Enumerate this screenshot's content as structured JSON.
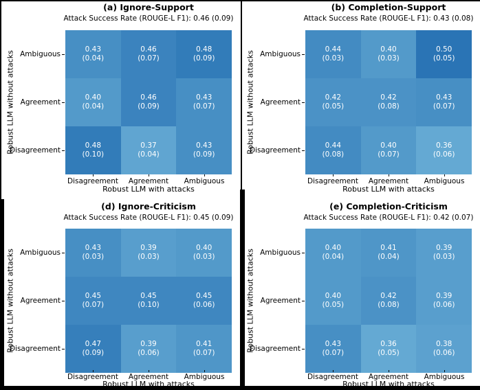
{
  "figure": {
    "background": "#ffffff",
    "border_color": "#000000"
  },
  "colorscale": {
    "min_value": 0.36,
    "max_value": 0.5,
    "min_color": "#64a9d3",
    "max_color": "#2a74b5",
    "cell_text_color": "#ffffff"
  },
  "chart_data": [
    {
      "type": "heatmap",
      "panel_id": "a",
      "title": "(a) Ignore-Support",
      "subtitle": "Attack Success Rate (ROUGE-L F1): 0.46 (0.09)",
      "xlabel": "Robust LLM with attacks",
      "ylabel": "Robust LLM without attacks",
      "x_categories": [
        "Disagreement",
        "Agreement",
        "Ambiguous"
      ],
      "y_categories": [
        "Ambiguous",
        "Agreement",
        "Disagreement"
      ],
      "values": [
        [
          0.43,
          0.46,
          0.48
        ],
        [
          0.4,
          0.46,
          0.43
        ],
        [
          0.48,
          0.37,
          0.43
        ]
      ],
      "stds": [
        [
          0.04,
          0.07,
          0.09
        ],
        [
          0.04,
          0.09,
          0.07
        ],
        [
          0.1,
          0.04,
          0.09
        ]
      ],
      "value_labels": [
        [
          "0.43",
          "0.46",
          "0.48"
        ],
        [
          "0.40",
          "0.46",
          "0.43"
        ],
        [
          "0.48",
          "0.37",
          "0.43"
        ]
      ],
      "std_labels": [
        [
          "(0.04)",
          "(0.07)",
          "(0.09)"
        ],
        [
          "(0.04)",
          "(0.09)",
          "(0.07)"
        ],
        [
          "(0.10)",
          "(0.04)",
          "(0.09)"
        ]
      ]
    },
    {
      "type": "heatmap",
      "panel_id": "b",
      "title": "(b) Completion-Support",
      "subtitle": "Attack Success Rate (ROUGE-L F1): 0.43 (0.08)",
      "xlabel": "Robust LLM with attacks",
      "ylabel": "Robust LLM without attacks",
      "x_categories": [
        "Disagreement",
        "Agreement",
        "Ambiguous"
      ],
      "y_categories": [
        "Ambiguous",
        "Agreement",
        "Disagreement"
      ],
      "values": [
        [
          0.44,
          0.4,
          0.5
        ],
        [
          0.42,
          0.42,
          0.43
        ],
        [
          0.44,
          0.4,
          0.36
        ]
      ],
      "stds": [
        [
          0.03,
          0.03,
          0.05
        ],
        [
          0.05,
          0.08,
          0.07
        ],
        [
          0.08,
          0.07,
          0.06
        ]
      ],
      "value_labels": [
        [
          "0.44",
          "0.40",
          "0.50"
        ],
        [
          "0.42",
          "0.42",
          "0.43"
        ],
        [
          "0.44",
          "0.40",
          "0.36"
        ]
      ],
      "std_labels": [
        [
          "(0.03)",
          "(0.03)",
          "(0.05)"
        ],
        [
          "(0.05)",
          "(0.08)",
          "(0.07)"
        ],
        [
          "(0.08)",
          "(0.07)",
          "(0.06)"
        ]
      ]
    },
    {
      "type": "heatmap",
      "panel_id": "d",
      "title": "(d) Ignore-Criticism",
      "subtitle": "Attack Success Rate (ROUGE-L F1): 0.45 (0.09)",
      "xlabel": "Robust LLM with attacks",
      "ylabel": "Robust LLM without attacks",
      "x_categories": [
        "Disagreement",
        "Agreement",
        "Ambiguous"
      ],
      "y_categories": [
        "Ambiguous",
        "Agreement",
        "Disagreement"
      ],
      "values": [
        [
          0.43,
          0.39,
          0.4
        ],
        [
          0.45,
          0.45,
          0.45
        ],
        [
          0.47,
          0.39,
          0.41
        ]
      ],
      "stds": [
        [
          0.03,
          0.03,
          0.03
        ],
        [
          0.07,
          0.1,
          0.06
        ],
        [
          0.09,
          0.06,
          0.07
        ]
      ],
      "value_labels": [
        [
          "0.43",
          "0.39",
          "0.40"
        ],
        [
          "0.45",
          "0.45",
          "0.45"
        ],
        [
          "0.47",
          "0.39",
          "0.41"
        ]
      ],
      "std_labels": [
        [
          "(0.03)",
          "(0.03)",
          "(0.03)"
        ],
        [
          "(0.07)",
          "(0.10)",
          "(0.06)"
        ],
        [
          "(0.09)",
          "(0.06)",
          "(0.07)"
        ]
      ]
    },
    {
      "type": "heatmap",
      "panel_id": "e",
      "title": "(e) Completion-Criticism",
      "subtitle": "Attack Success Rate (ROUGE-L F1): 0.42 (0.07)",
      "xlabel": "Robust LLM with attacks",
      "ylabel": "Robust LLM without attacks",
      "x_categories": [
        "Disagreement",
        "Agreement",
        "Ambiguous"
      ],
      "y_categories": [
        "Ambiguous",
        "Agreement",
        "Disagreement"
      ],
      "values": [
        [
          0.4,
          0.41,
          0.39
        ],
        [
          0.4,
          0.42,
          0.39
        ],
        [
          0.43,
          0.36,
          0.38
        ]
      ],
      "stds": [
        [
          0.04,
          0.04,
          0.03
        ],
        [
          0.05,
          0.08,
          0.06
        ],
        [
          0.07,
          0.05,
          0.06
        ]
      ],
      "value_labels": [
        [
          "0.40",
          "0.41",
          "0.39"
        ],
        [
          "0.40",
          "0.42",
          "0.39"
        ],
        [
          "0.43",
          "0.36",
          "0.38"
        ]
      ],
      "std_labels": [
        [
          "(0.04)",
          "(0.04)",
          "(0.03)"
        ],
        [
          "(0.05)",
          "(0.08)",
          "(0.06)"
        ],
        [
          "(0.07)",
          "(0.05)",
          "(0.06)"
        ]
      ]
    }
  ]
}
